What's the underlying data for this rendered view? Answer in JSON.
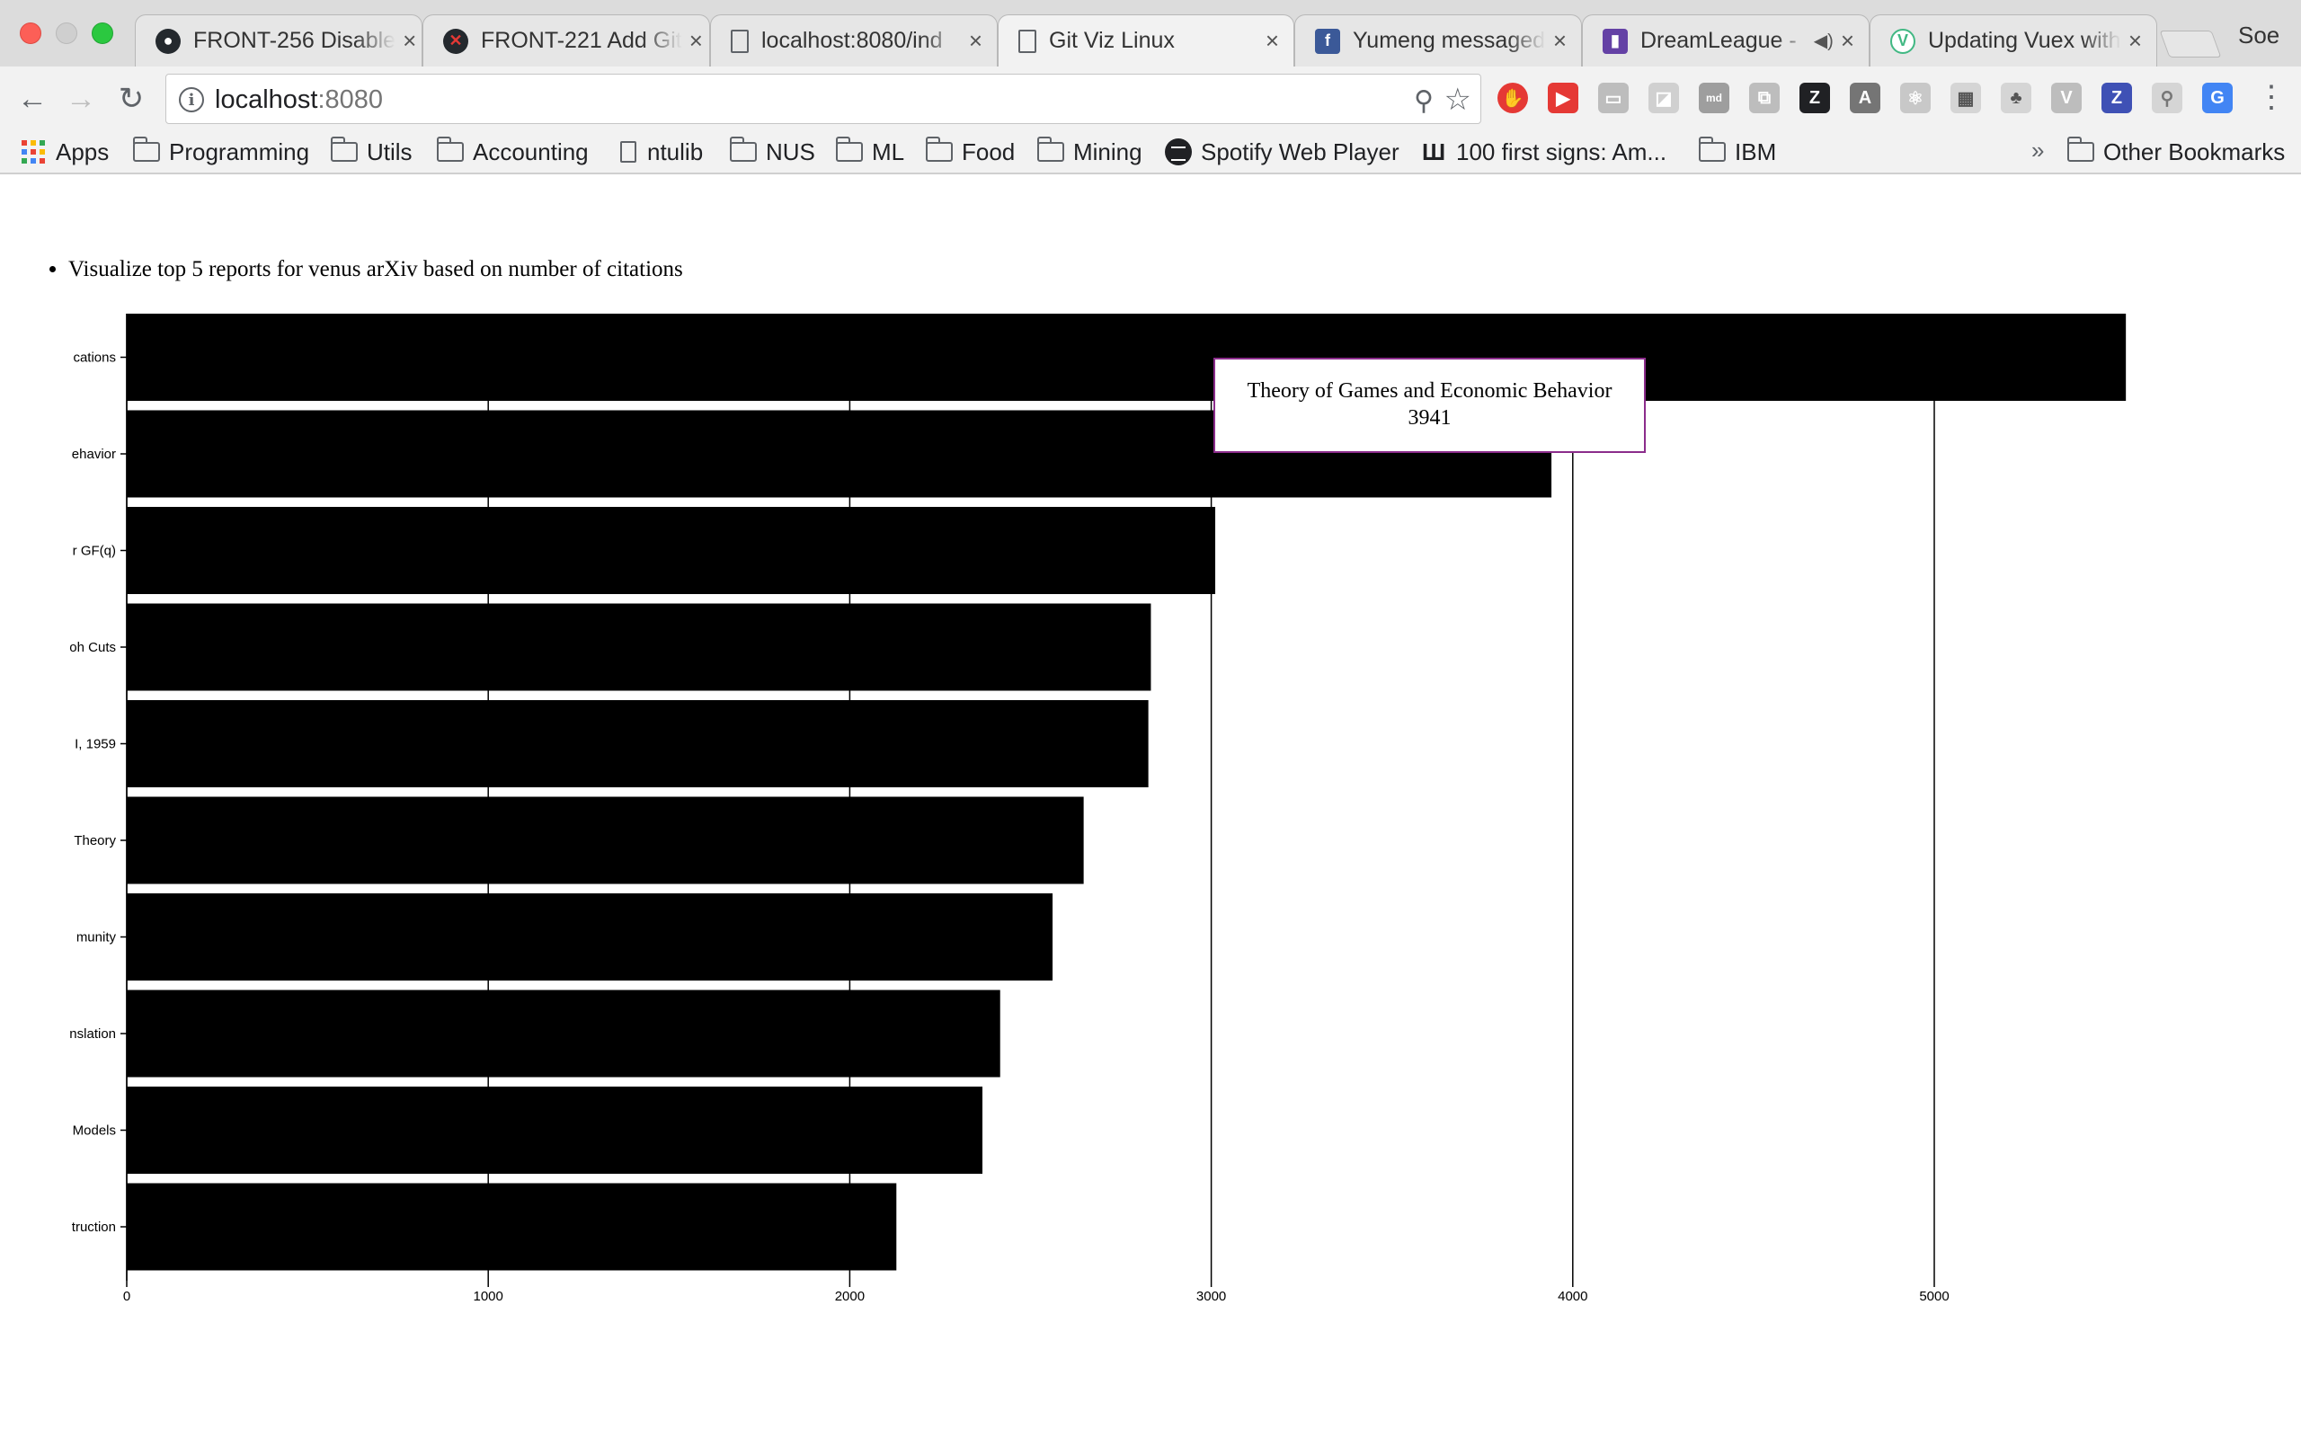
{
  "browser": {
    "tabs": [
      {
        "title": "FRONT-256 Disable",
        "icon": "github-icon",
        "close": "×"
      },
      {
        "title": "FRONT-221 Add Git",
        "icon": "github-error-icon",
        "close": "×"
      },
      {
        "title": "localhost:8080/ind",
        "icon": "page-icon",
        "close": "×"
      },
      {
        "title": "Git Viz Linux",
        "icon": "page-icon",
        "close": "×"
      },
      {
        "title": "Yumeng messaged",
        "icon": "facebook-icon",
        "close": "×"
      },
      {
        "title": "DreamLeague - ",
        "icon": "twitch-icon",
        "close": "×"
      },
      {
        "title": "Updating Vuex with",
        "icon": "vue-icon",
        "close": "×"
      }
    ],
    "profile_name": "Soe",
    "url_host": "localhost",
    "url_port": ":8080",
    "bookmarks": [
      {
        "label": "Apps",
        "icon": "apps-icon"
      },
      {
        "label": "Programming",
        "icon": "folder-icon"
      },
      {
        "label": "Utils",
        "icon": "folder-icon"
      },
      {
        "label": "Accounting",
        "icon": "folder-icon"
      },
      {
        "label": "ntulib",
        "icon": "file-icon"
      },
      {
        "label": "NUS",
        "icon": "folder-icon"
      },
      {
        "label": "ML",
        "icon": "folder-icon"
      },
      {
        "label": "Food",
        "icon": "folder-icon"
      },
      {
        "label": "Mining",
        "icon": "folder-icon"
      },
      {
        "label": "Spotify Web Player",
        "icon": "spotify-icon"
      },
      {
        "label": "100 first signs: Am...",
        "icon": "signs-icon"
      },
      {
        "label": "IBM",
        "icon": "folder-icon"
      }
    ],
    "bookmarks_overflow": "»",
    "other_bookmarks": "Other Bookmarks",
    "colors": {
      "tab_active": "#f2f2f2",
      "tab_inactive": "#e6e6e6",
      "chrome_bg": "#dcdcdc"
    }
  },
  "page": {
    "description": "Visualize top 5 reports for venus arXiv based on number of citations",
    "tooltip": {
      "title": "Theory of Games and Economic Behavior",
      "value": "3941"
    }
  },
  "chart_data": {
    "type": "bar",
    "orientation": "horizontal",
    "categories": [
      "cations",
      "ehavior",
      "r GF(q)",
      "oh Cuts",
      "I, 1959",
      "Theory",
      "munity",
      "nslation",
      "Models",
      "truction"
    ],
    "values": [
      5530,
      3941,
      3011,
      2833,
      2826,
      2647,
      2561,
      2416,
      2367,
      2129
    ],
    "x_ticks": [
      0,
      1000,
      2000,
      3000,
      4000,
      5000
    ],
    "xlim": [
      0,
      5880
    ],
    "grid": "vertical",
    "bar_color": "#000000",
    "title": "",
    "xlabel": "",
    "ylabel": ""
  }
}
